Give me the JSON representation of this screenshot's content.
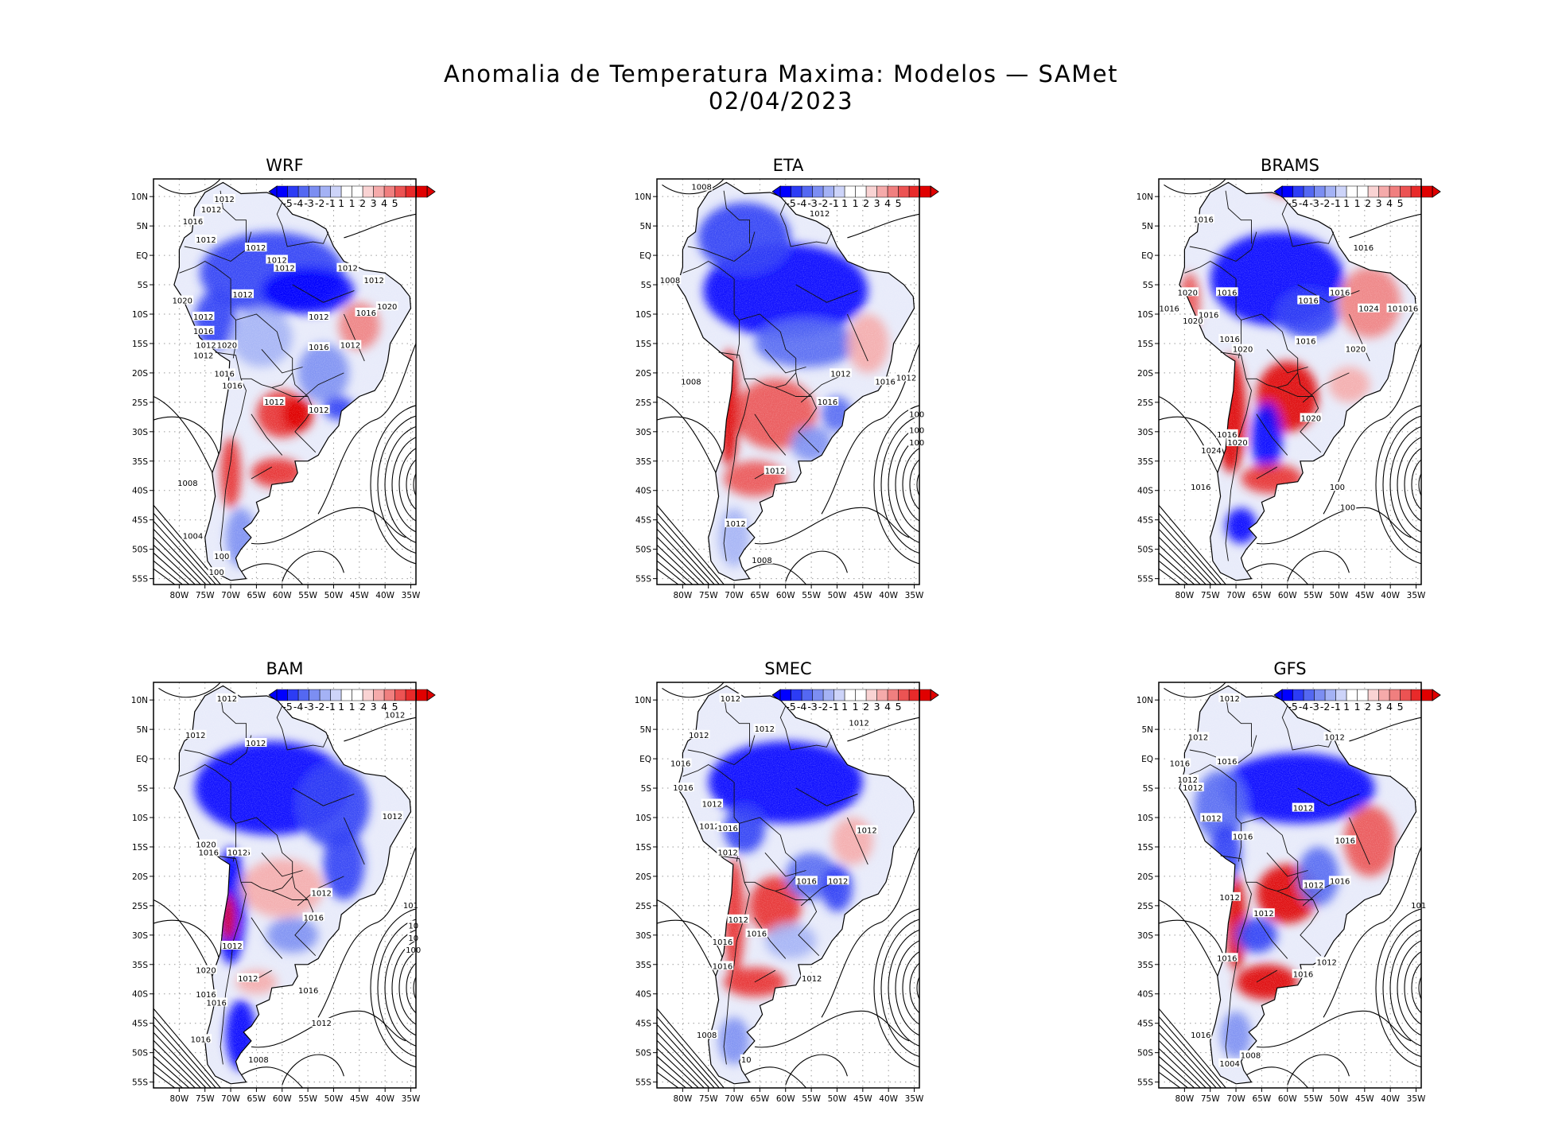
{
  "title": "Anomalia de Temperatura Maxima: Modelos — SAMet",
  "date": "02/04/2023",
  "colors": {
    "neg": [
      "#0000ff",
      "#2c3cf5",
      "#5468f2",
      "#7c8ef2",
      "#a4b2f5",
      "#cdd4f9"
    ],
    "pos": [
      "#f9d3d3",
      "#f5aaaa",
      "#f07f7f",
      "#ec5353",
      "#e82a2a",
      "#e00000"
    ],
    "coast": "#000000",
    "grid": "#9a9a9a"
  },
  "lat_labels": [
    "10N",
    "5N",
    "EQ",
    "5S",
    "10S",
    "15S",
    "20S",
    "25S",
    "30S",
    "35S",
    "40S",
    "45S",
    "50S",
    "55S"
  ],
  "lon_labels": [
    "80W",
    "75W",
    "70W",
    "65W",
    "60W",
    "55W",
    "50W",
    "45W",
    "40W",
    "35W"
  ],
  "colorbar_labels": [
    "-5",
    "-4",
    "-3",
    "-2",
    "-1",
    "1",
    "1",
    "2",
    "3",
    "4",
    "5"
  ],
  "panels": [
    {
      "id": "wrf",
      "title": "WRF",
      "isobars": [
        "1012",
        "1012",
        "1016",
        "1012",
        "1012",
        "1012",
        "1012",
        "1012",
        "1012",
        "1012",
        "1020",
        "1012",
        "1016",
        "1012",
        "1020",
        "1012",
        "1016",
        "1012",
        "1016",
        "1020",
        "1012",
        "1016",
        "1016",
        "1012",
        "1012",
        "1008",
        "1004",
        "100",
        "100"
      ]
    },
    {
      "id": "eta",
      "title": "ETA",
      "isobars": [
        "1008",
        "1012",
        "1008",
        "1008",
        "1012",
        "1012",
        "1016",
        "1012",
        "1016",
        "1012",
        "1008",
        "100",
        "100",
        "100"
      ]
    },
    {
      "id": "brams",
      "title": "BRAMS",
      "isobars": [
        "1016",
        "1016",
        "1020",
        "1016",
        "1016",
        "1016",
        "1016",
        "1024",
        "1020",
        "1016",
        "1020",
        "1016",
        "1016",
        "1020",
        "1016",
        "1020",
        "1020",
        "1020",
        "1024",
        "1016",
        "1016",
        "100",
        "100"
      ]
    },
    {
      "id": "bam",
      "title": "BAM",
      "isobars": [
        "1012",
        "1012",
        "1012",
        "1012",
        "1012",
        "1020",
        "1016",
        "1016",
        "1012",
        "1012",
        "1016",
        "1012",
        "1020",
        "1012",
        "1016",
        "1016",
        "1016",
        "1012",
        "1016",
        "1008",
        "101",
        "10",
        "10",
        "100"
      ]
    },
    {
      "id": "smec",
      "title": "SMEC",
      "isobars": [
        "1012",
        "1012",
        "1012",
        "1012",
        "1016",
        "1016",
        "1012",
        "1012",
        "1016",
        "1012",
        "1012",
        "1016",
        "1012",
        "1012",
        "1016",
        "1016",
        "1016",
        "1012",
        "1008",
        "10"
      ]
    },
    {
      "id": "gfs",
      "title": "GFS",
      "isobars": [
        "1012",
        "1012",
        "1012",
        "1016",
        "1012",
        "1016",
        "1012",
        "1012",
        "1012",
        "1016",
        "1016",
        "1012",
        "1012",
        "1016",
        "1012",
        "1016",
        "1016",
        "1012",
        "1016",
        "1008",
        "1004",
        "101"
      ]
    }
  ]
}
